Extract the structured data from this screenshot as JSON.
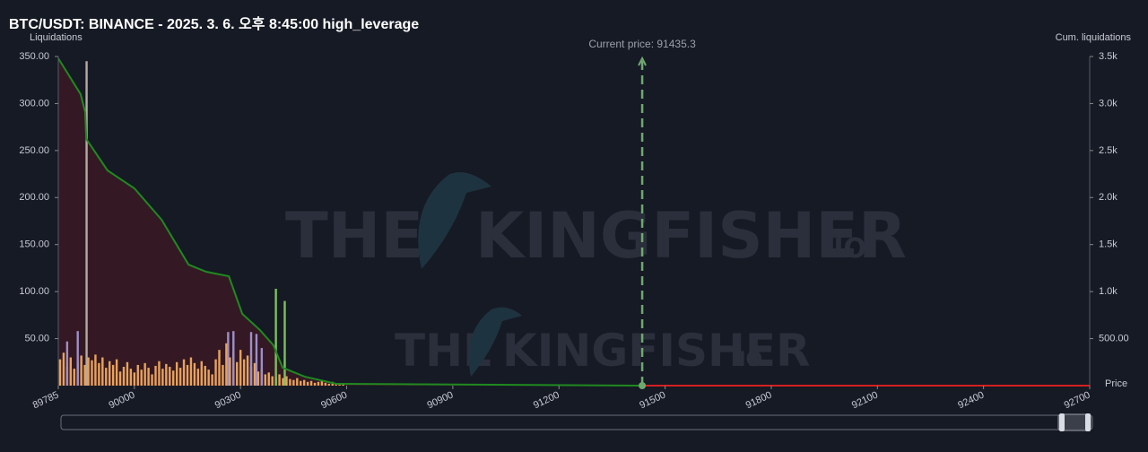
{
  "chart_data": {
    "type": "bar",
    "title": "BTC/USDT: BINANCE - 2025. 3. 6. 오후 8:45:00 high_leverage",
    "y_label": "Liquidations",
    "y2_label": "Cum. liquidations",
    "x_label": "Price",
    "xlim": [
      89785,
      92700
    ],
    "xticks": [
      89785,
      90000,
      90300,
      90600,
      90900,
      91200,
      91500,
      91800,
      92100,
      92400,
      92700
    ],
    "ylim": [
      0,
      350
    ],
    "yticks": [
      {
        "value": 50,
        "label": "50.00"
      },
      {
        "value": 100,
        "label": "100.00"
      },
      {
        "value": 150,
        "label": "150.00"
      },
      {
        "value": 200,
        "label": "200.00"
      },
      {
        "value": 250,
        "label": "250.00"
      },
      {
        "value": 300,
        "label": "300.00"
      },
      {
        "value": 350,
        "label": "350.00"
      }
    ],
    "y2lim": [
      0,
      3500
    ],
    "y2ticks": [
      {
        "value": 500,
        "label": "500.00"
      },
      {
        "value": 1000,
        "label": "1.0k"
      },
      {
        "value": 1500,
        "label": "1.5k"
      },
      {
        "value": 2000,
        "label": "2.0k"
      },
      {
        "value": 2500,
        "label": "2.5k"
      },
      {
        "value": 3000,
        "label": "3.0k"
      },
      {
        "value": 3500,
        "label": "3.5k"
      }
    ],
    "series": [
      {
        "color": "#e8a35a",
        "x": [
          89790,
          89800,
          89810,
          89820,
          89830,
          89840,
          89850,
          89860,
          89870,
          89880,
          89890,
          89900,
          89910,
          89920,
          89930,
          89940,
          89950,
          89960,
          89970,
          89980,
          89990,
          90000,
          90010,
          90020,
          90030,
          90040,
          90050,
          90060,
          90070,
          90080,
          90090,
          90100,
          90110,
          90120,
          90130,
          90140,
          90150,
          90160,
          90170,
          90180,
          90190,
          90200,
          90210,
          90220,
          90230,
          90240,
          90250,
          90260,
          90270,
          90280,
          90290,
          90300,
          90310,
          90320,
          90330,
          90340,
          90350,
          90360,
          90370,
          90380,
          90390,
          90400,
          90410,
          90420,
          90430,
          90440,
          90450,
          90460,
          90470,
          90480,
          90490,
          90500,
          90510,
          90520,
          90530,
          90540,
          90550,
          90560,
          90570,
          90580,
          90590
        ],
        "values": [
          28,
          35,
          20,
          30,
          18,
          25,
          32,
          22,
          30,
          27,
          33,
          24,
          30,
          19,
          26,
          22,
          28,
          15,
          20,
          25,
          18,
          14,
          22,
          17,
          24,
          19,
          12,
          21,
          26,
          18,
          23,
          20,
          16,
          25,
          19,
          28,
          22,
          30,
          24,
          18,
          26,
          21,
          17,
          12,
          28,
          38,
          22,
          45,
          30,
          35,
          25,
          38,
          28,
          32,
          20,
          24,
          15,
          18,
          12,
          14,
          10,
          9,
          12,
          8,
          10,
          7,
          6,
          8,
          5,
          6,
          4,
          5,
          3,
          4,
          6,
          3,
          2,
          4,
          2,
          1,
          2
        ]
      },
      {
        "color": "#9d8fc9",
        "x": [
          89810,
          89840,
          90265,
          90280,
          90330,
          90345,
          90360
        ],
        "values": [
          47,
          58,
          57,
          58,
          57,
          55,
          40
        ]
      },
      {
        "color": "#b3aaa2",
        "x": [
          89865
        ],
        "values": [
          345
        ]
      },
      {
        "color": "#7fbf5f",
        "x": [
          90400,
          90425
        ],
        "values": [
          103,
          90
        ]
      }
    ],
    "lines": [
      {
        "color": "#1f8a1f",
        "fill": "#3a1a24",
        "axis": "y2",
        "x": [
          89785,
          89848,
          89861,
          89864,
          89924,
          90000,
          90077,
          90153,
          90203,
          90267,
          90305,
          90355,
          90393,
          90419,
          90482,
          90571,
          91435.3
        ],
        "values": [
          3480,
          3100,
          2909,
          2623,
          2289,
          2098,
          1764,
          1287,
          1211,
          1163,
          763,
          591,
          429,
          191,
          95,
          19,
          0
        ]
      },
      {
        "color": "#d42020",
        "axis": "y2",
        "x": [
          91435.3,
          92700
        ],
        "values": [
          0,
          0
        ]
      }
    ],
    "current_price": {
      "label": "Current price: 91435.3",
      "value": 91435.3,
      "color": "#6fa86f"
    },
    "watermark": [
      "THE",
      "KINGFISHER",
      ".IO"
    ]
  }
}
